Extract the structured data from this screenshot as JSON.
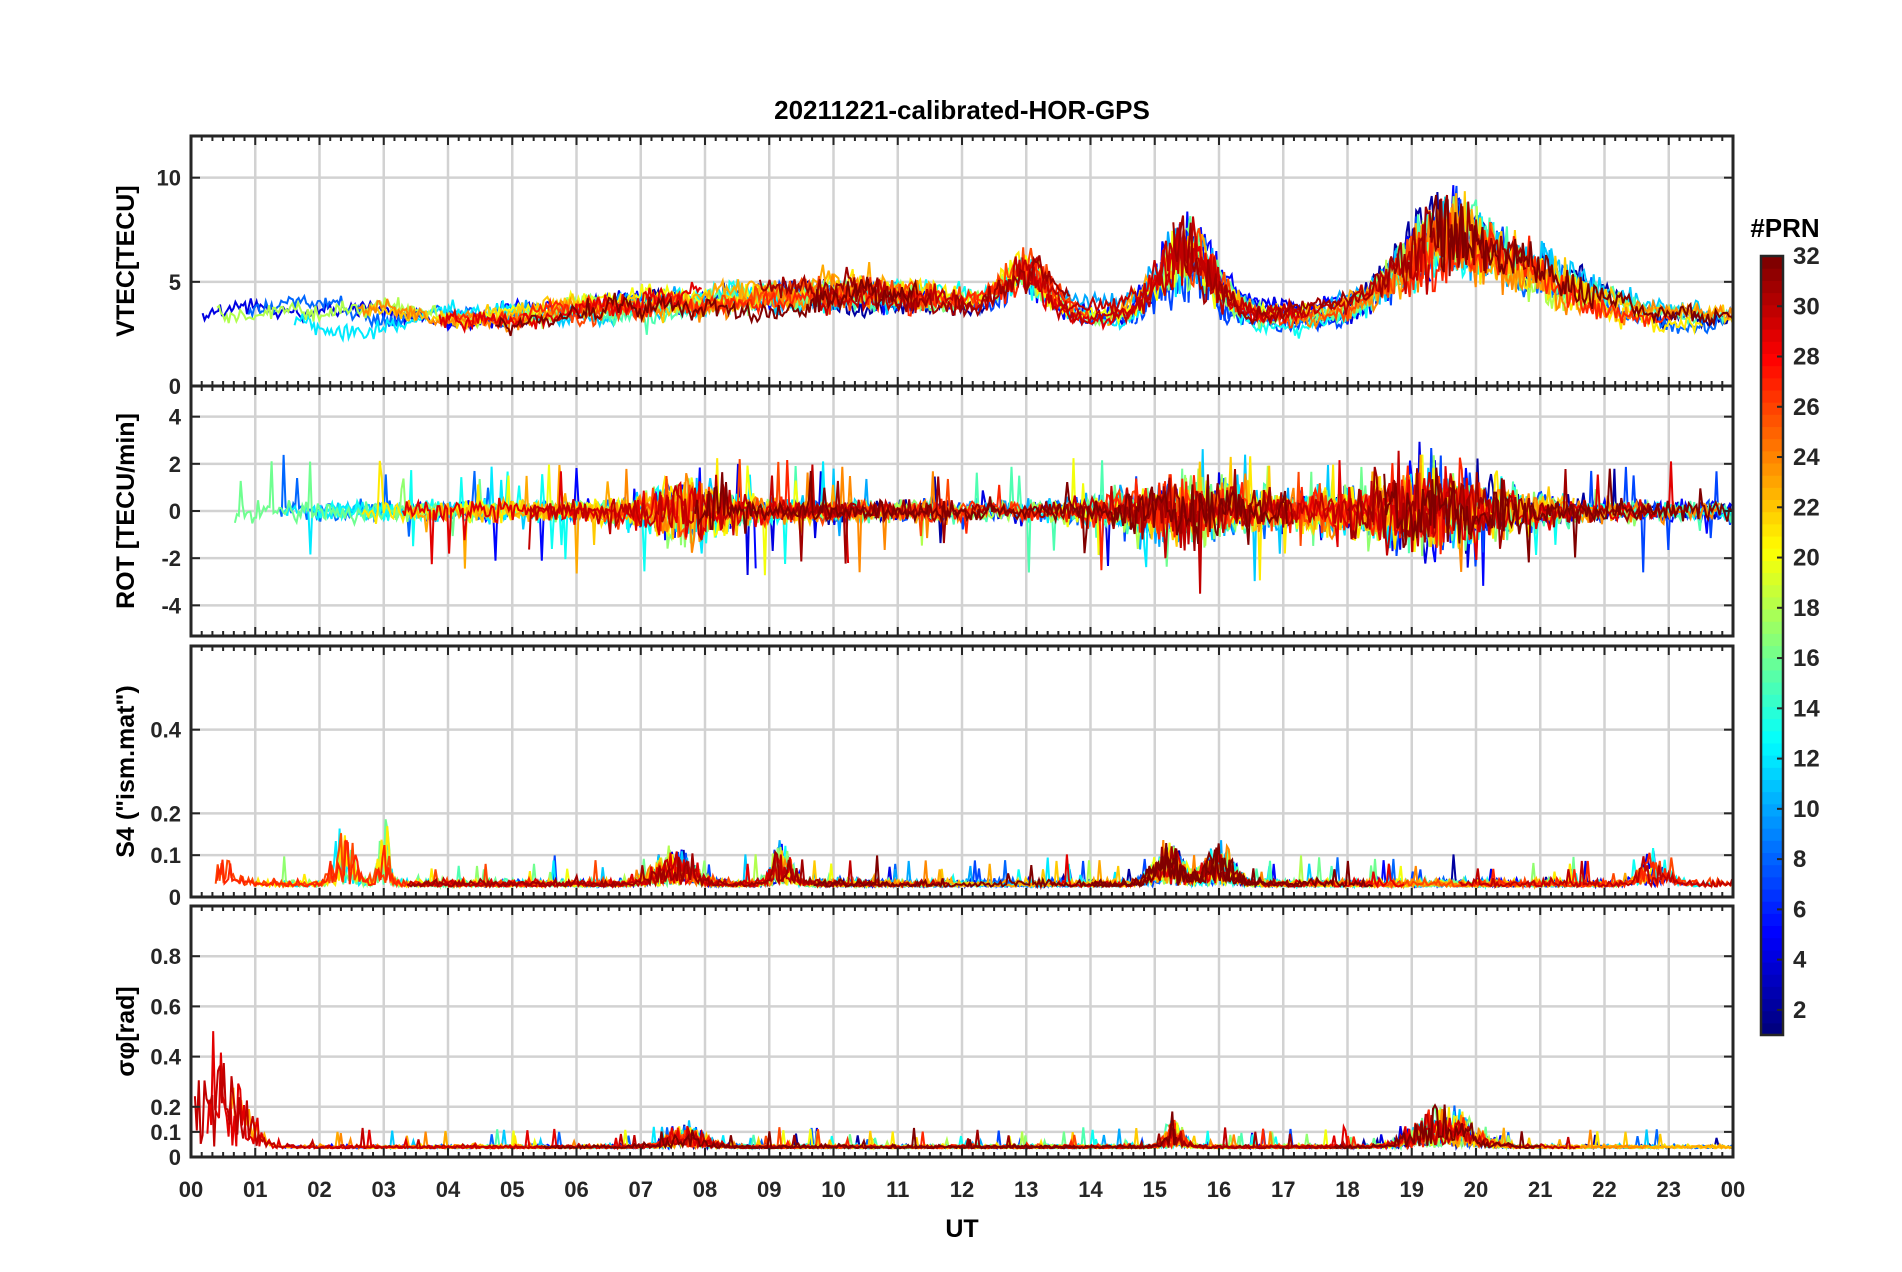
{
  "chart_data": {
    "type": "line",
    "title": "20211221-calibrated-HOR-GPS",
    "xlabel": "UT",
    "x_tick_labels": [
      "00",
      "01",
      "02",
      "03",
      "04",
      "05",
      "06",
      "07",
      "08",
      "09",
      "10",
      "11",
      "12",
      "13",
      "14",
      "15",
      "16",
      "17",
      "18",
      "19",
      "20",
      "21",
      "22",
      "23",
      "00"
    ],
    "xlim_hours": [
      0,
      24
    ],
    "grid": true,
    "colormap": "jet",
    "colorbar": {
      "title": "#PRN",
      "range": [
        1,
        32
      ],
      "tick_labels": [
        "2",
        "4",
        "6",
        "8",
        "10",
        "12",
        "14",
        "16",
        "18",
        "20",
        "22",
        "24",
        "26",
        "28",
        "30",
        "32"
      ]
    },
    "panels": [
      {
        "id": "vtec",
        "ylabel": "VTEC[TECU]",
        "ylim": [
          0,
          12
        ],
        "yticks": [
          0,
          5,
          10
        ],
        "ytick_labels": [
          "0",
          "5",
          "10"
        ],
        "baseline": 3.4,
        "noise": 0.5,
        "floor": 0.6,
        "cap": 12,
        "events": [
          {
            "t": 7.5,
            "amp": 0.6,
            "w": 2.0
          },
          {
            "t": 10.5,
            "amp": 1.2,
            "w": 2.0
          },
          {
            "t": 13.0,
            "amp": 2.0,
            "w": 0.5
          },
          {
            "t": 15.5,
            "amp": 3.5,
            "w": 0.6
          },
          {
            "t": 19.5,
            "amp": 4.0,
            "w": 1.0
          },
          {
            "t": 21.0,
            "amp": 2.0,
            "w": 1.2
          }
        ]
      },
      {
        "id": "rot",
        "ylabel": "ROT [TECU/min]",
        "ylim": [
          -5.3,
          5.3
        ],
        "yticks": [
          -4,
          -2,
          0,
          2,
          4
        ],
        "ytick_labels": [
          "-4",
          "-2",
          "0",
          "2",
          "4"
        ],
        "baseline": 0,
        "noise": 0.35,
        "spike_amp": 2.5,
        "events": [
          {
            "t": 0.5,
            "amp": 1.5,
            "w": 0.4
          },
          {
            "t": 7.7,
            "amp": 1.5,
            "w": 0.8
          },
          {
            "t": 15.5,
            "amp": 1.6,
            "w": 1.2
          },
          {
            "t": 19.3,
            "amp": 2.0,
            "w": 1.5
          }
        ]
      },
      {
        "id": "s4",
        "ylabel": "S4 (\"ism.mat\")",
        "ylim": [
          0,
          0.6
        ],
        "yticks": [
          0,
          0.1,
          0.2,
          0.4
        ],
        "ytick_labels": [
          "0",
          "0.1",
          "0.2",
          "0.4"
        ],
        "baseline": 0.025,
        "noise": 0.012,
        "spike_amp": 0.07,
        "floor": 0,
        "events": [
          {
            "t": 0.5,
            "amp": 0.06,
            "w": 0.3
          },
          {
            "t": 2.4,
            "amp": 0.15,
            "w": 0.2
          },
          {
            "t": 3.0,
            "amp": 0.18,
            "w": 0.1
          },
          {
            "t": 7.5,
            "amp": 0.08,
            "w": 0.4
          },
          {
            "t": 9.2,
            "amp": 0.1,
            "w": 0.2
          },
          {
            "t": 15.2,
            "amp": 0.1,
            "w": 0.3
          },
          {
            "t": 16.0,
            "amp": 0.09,
            "w": 0.3
          },
          {
            "t": 22.8,
            "amp": 0.07,
            "w": 0.3
          }
        ]
      },
      {
        "id": "sigma_phi",
        "ylabel": "σφ[rad]",
        "ylim": [
          0,
          1.0
        ],
        "yticks": [
          0,
          0.1,
          0.2,
          0.4,
          0.6,
          0.8
        ],
        "ytick_labels": [
          "0",
          "0.1",
          "0.2",
          "0.4",
          "0.6",
          "0.8"
        ],
        "baseline": 0.035,
        "noise": 0.01,
        "spike_amp": 0.08,
        "floor": 0,
        "events": [
          {
            "t": 0.3,
            "amp": 0.4,
            "w": 0.4
          },
          {
            "t": 0.8,
            "amp": 0.2,
            "w": 0.3
          },
          {
            "t": 7.7,
            "amp": 0.08,
            "w": 0.4
          },
          {
            "t": 15.3,
            "amp": 0.1,
            "w": 0.2
          },
          {
            "t": 19.5,
            "amp": 0.15,
            "w": 0.6
          }
        ]
      }
    ],
    "series_prns": [
      2,
      4,
      5,
      7,
      8,
      10,
      11,
      12,
      13,
      15,
      16,
      17,
      18,
      20,
      21,
      22,
      23,
      24,
      26,
      27,
      29,
      30,
      31,
      32
    ]
  }
}
